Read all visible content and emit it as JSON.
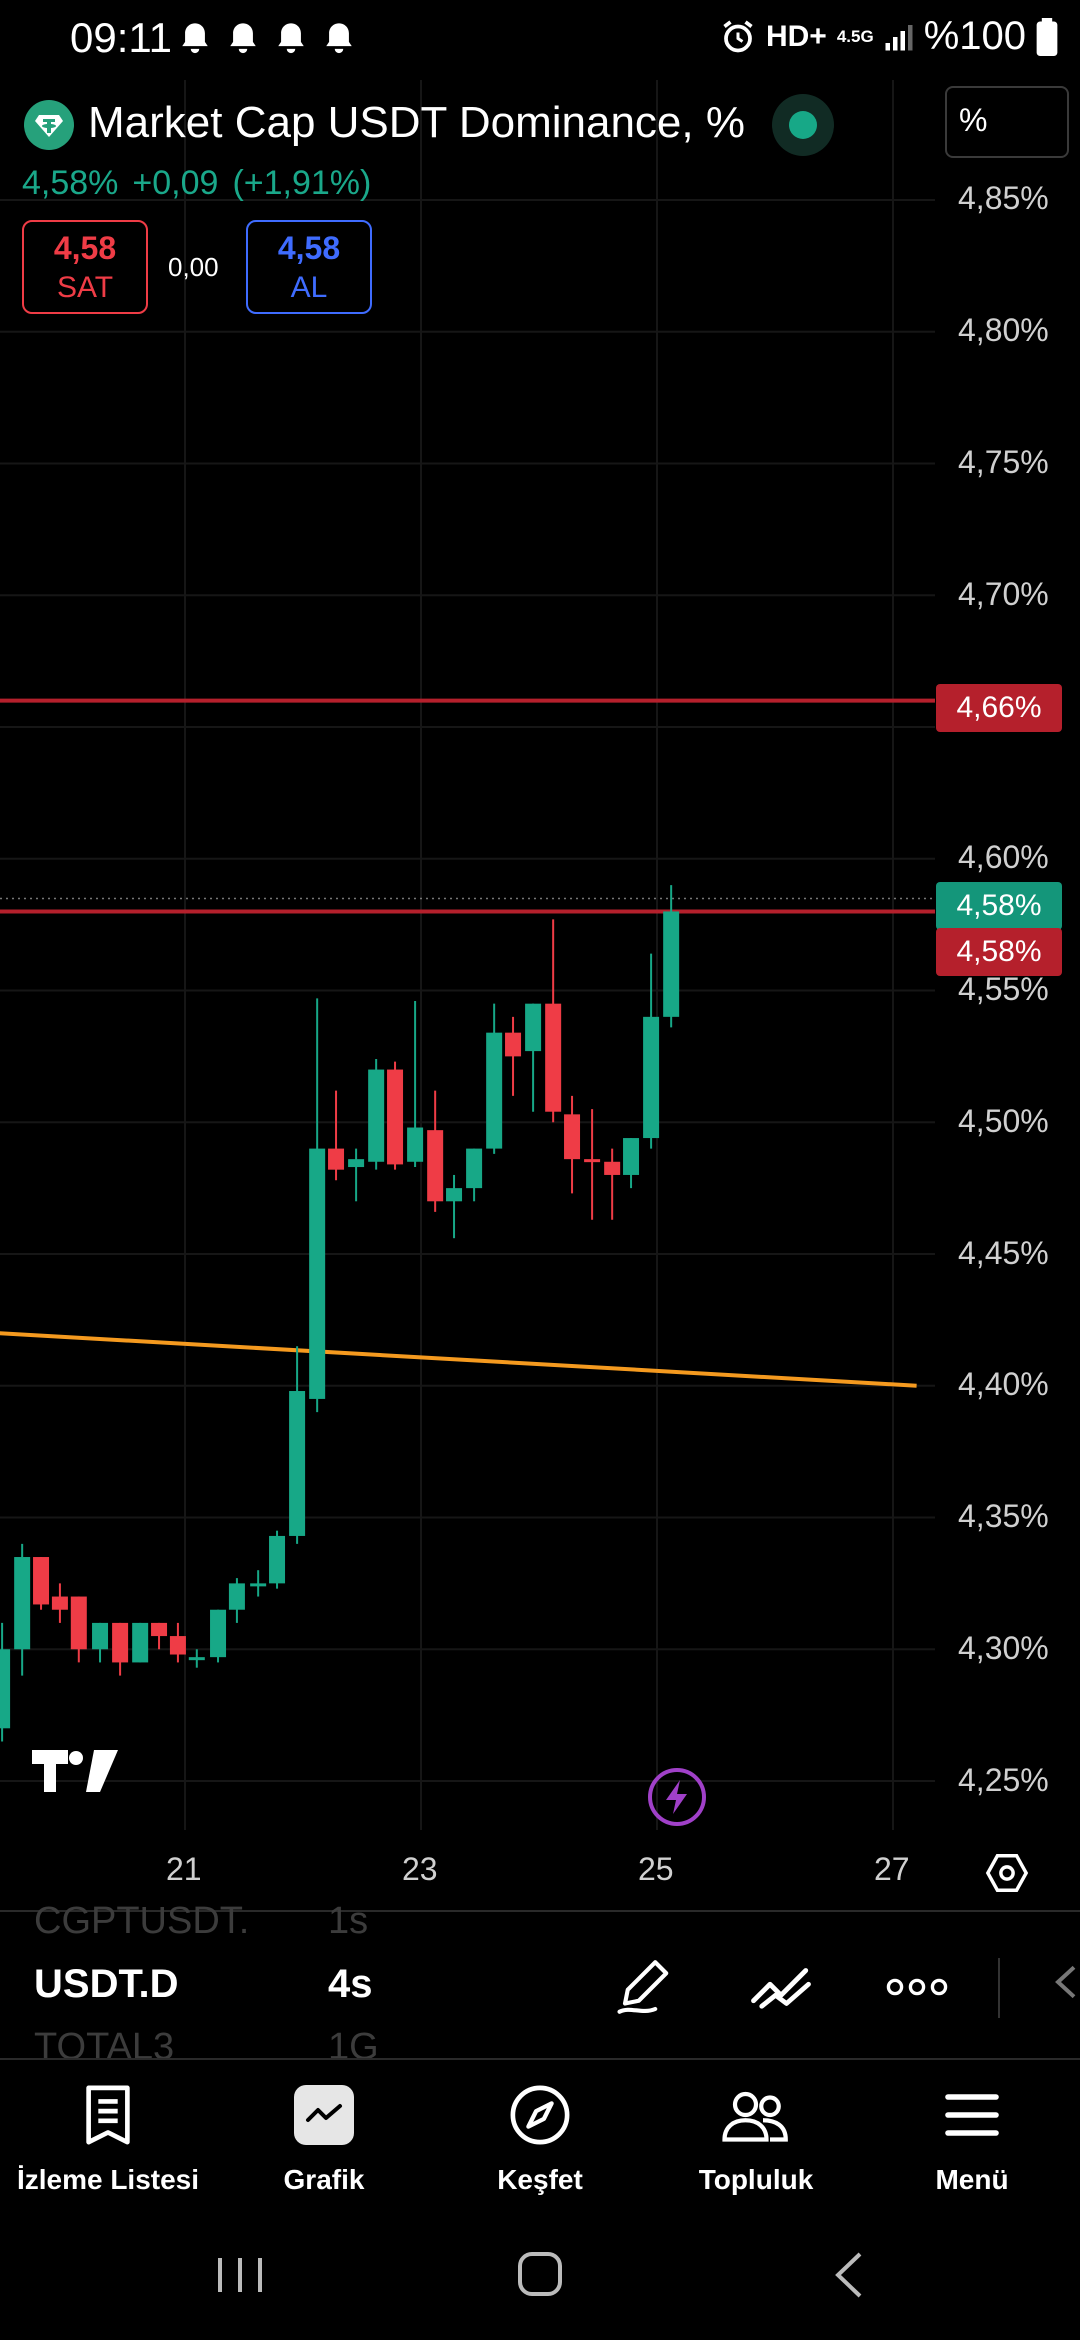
{
  "status_bar": {
    "time": "09:11",
    "network": "HD+",
    "net_type": "4.5G",
    "battery": "%100",
    "icons": [
      "bell-icon",
      "bell-icon",
      "bell-icon",
      "bell-icon",
      "alarm-icon",
      "signal-icon",
      "battery-icon"
    ]
  },
  "header": {
    "symbol_title": "Market Cap USDT Dominance, %",
    "unit_button": "%",
    "last_price": "4,58%",
    "change": "+0,09",
    "change_pct": "(+1,91%)"
  },
  "trade": {
    "sell_price": "4,58",
    "sell_label": "SAT",
    "spread": "0,00",
    "buy_price": "4,58",
    "buy_label": "AL"
  },
  "colors": {
    "up": "#17a887",
    "down": "#ef3c46",
    "buy": "#3f6cff",
    "hline": "#b5202c",
    "trend": "#f59a1f",
    "live_tag": "#14967a",
    "alert_tag": "#b5202c"
  },
  "chart_data": {
    "type": "candlestick",
    "y_ticks": [
      "4,85%",
      "4,80%",
      "4,75%",
      "4,70%",
      "4,60%",
      "4,55%",
      "4,50%",
      "4,45%",
      "4,40%",
      "4,35%",
      "4,30%",
      "4,25%"
    ],
    "x_ticks": [
      "21",
      "23",
      "25",
      "27"
    ],
    "ylim": [
      4.25,
      4.85
    ],
    "last_price_tag": "4,58%",
    "horizontal_lines": [
      {
        "value": 4.66,
        "label": "4,66%"
      },
      {
        "value": 4.58,
        "label": "4,58%"
      }
    ],
    "trendline": {
      "from": [
        19.4,
        4.42
      ],
      "to": [
        27.2,
        4.4
      ]
    },
    "candles": [
      {
        "t": 19.45,
        "o": 4.27,
        "h": 4.31,
        "l": 4.265,
        "c": 4.3
      },
      {
        "t": 19.62,
        "o": 4.3,
        "h": 4.34,
        "l": 4.29,
        "c": 4.335
      },
      {
        "t": 19.78,
        "o": 4.335,
        "h": 4.335,
        "l": 4.315,
        "c": 4.317
      },
      {
        "t": 19.94,
        "o": 4.32,
        "h": 4.325,
        "l": 4.31,
        "c": 4.315
      },
      {
        "t": 20.1,
        "o": 4.32,
        "h": 4.32,
        "l": 4.295,
        "c": 4.3
      },
      {
        "t": 20.28,
        "o": 4.3,
        "h": 4.31,
        "l": 4.295,
        "c": 4.31
      },
      {
        "t": 20.45,
        "o": 4.31,
        "h": 4.31,
        "l": 4.29,
        "c": 4.295
      },
      {
        "t": 20.62,
        "o": 4.295,
        "h": 4.31,
        "l": 4.295,
        "c": 4.31
      },
      {
        "t": 20.78,
        "o": 4.31,
        "h": 4.31,
        "l": 4.3,
        "c": 4.305
      },
      {
        "t": 20.94,
        "o": 4.305,
        "h": 4.31,
        "l": 4.295,
        "c": 4.298
      },
      {
        "t": 21.1,
        "o": 4.297,
        "h": 4.3,
        "l": 4.293,
        "c": 4.297
      },
      {
        "t": 21.28,
        "o": 4.297,
        "h": 4.315,
        "l": 4.295,
        "c": 4.315
      },
      {
        "t": 21.44,
        "o": 4.315,
        "h": 4.327,
        "l": 4.31,
        "c": 4.325
      },
      {
        "t": 21.62,
        "o": 4.325,
        "h": 4.33,
        "l": 4.32,
        "c": 4.325
      },
      {
        "t": 21.78,
        "o": 4.325,
        "h": 4.345,
        "l": 4.323,
        "c": 4.343
      },
      {
        "t": 21.95,
        "o": 4.343,
        "h": 4.415,
        "l": 4.34,
        "c": 4.398
      },
      {
        "t": 22.12,
        "o": 4.395,
        "h": 4.547,
        "l": 4.39,
        "c": 4.49
      },
      {
        "t": 22.28,
        "o": 4.49,
        "h": 4.512,
        "l": 4.478,
        "c": 4.482
      },
      {
        "t": 22.45,
        "o": 4.483,
        "h": 4.49,
        "l": 4.47,
        "c": 4.486
      },
      {
        "t": 22.62,
        "o": 4.485,
        "h": 4.524,
        "l": 4.482,
        "c": 4.52
      },
      {
        "t": 22.78,
        "o": 4.52,
        "h": 4.523,
        "l": 4.482,
        "c": 4.484
      },
      {
        "t": 22.95,
        "o": 4.485,
        "h": 4.546,
        "l": 4.483,
        "c": 4.498
      },
      {
        "t": 23.12,
        "o": 4.497,
        "h": 4.512,
        "l": 4.466,
        "c": 4.47
      },
      {
        "t": 23.28,
        "o": 4.47,
        "h": 4.48,
        "l": 4.456,
        "c": 4.475
      },
      {
        "t": 23.45,
        "o": 4.475,
        "h": 4.49,
        "l": 4.47,
        "c": 4.49
      },
      {
        "t": 23.62,
        "o": 4.49,
        "h": 4.545,
        "l": 4.488,
        "c": 4.534
      },
      {
        "t": 23.78,
        "o": 4.534,
        "h": 4.54,
        "l": 4.51,
        "c": 4.525
      },
      {
        "t": 23.95,
        "o": 4.527,
        "h": 4.545,
        "l": 4.504,
        "c": 4.545
      },
      {
        "t": 24.12,
        "o": 4.545,
        "h": 4.577,
        "l": 4.5,
        "c": 4.504
      },
      {
        "t": 24.28,
        "o": 4.503,
        "h": 4.51,
        "l": 4.473,
        "c": 4.486
      },
      {
        "t": 24.45,
        "o": 4.486,
        "h": 4.505,
        "l": 4.463,
        "c": 4.485
      },
      {
        "t": 24.62,
        "o": 4.485,
        "h": 4.49,
        "l": 4.463,
        "c": 4.48
      },
      {
        "t": 24.78,
        "o": 4.48,
        "h": 4.494,
        "l": 4.475,
        "c": 4.494
      },
      {
        "t": 24.95,
        "o": 4.494,
        "h": 4.564,
        "l": 4.49,
        "c": 4.54
      },
      {
        "t": 25.12,
        "o": 4.54,
        "h": 4.59,
        "l": 4.536,
        "c": 4.58
      }
    ]
  },
  "picker": {
    "prev_symbol": "CGPTUSDT.",
    "prev_interval": "1s",
    "current_symbol": "USDT.D",
    "current_interval": "4s",
    "next_symbol": "TOTAL3",
    "next_interval": "1G",
    "tools": [
      "pencil-icon",
      "trend-tools-icon",
      "more-icon"
    ]
  },
  "nav": [
    {
      "label": "İzleme Listesi",
      "icon": "watchlist-icon"
    },
    {
      "label": "Grafik",
      "icon": "chart-icon"
    },
    {
      "label": "Keşfet",
      "icon": "compass-icon"
    },
    {
      "label": "Topluluk",
      "icon": "community-icon"
    },
    {
      "label": "Menü",
      "icon": "menu-icon"
    }
  ]
}
